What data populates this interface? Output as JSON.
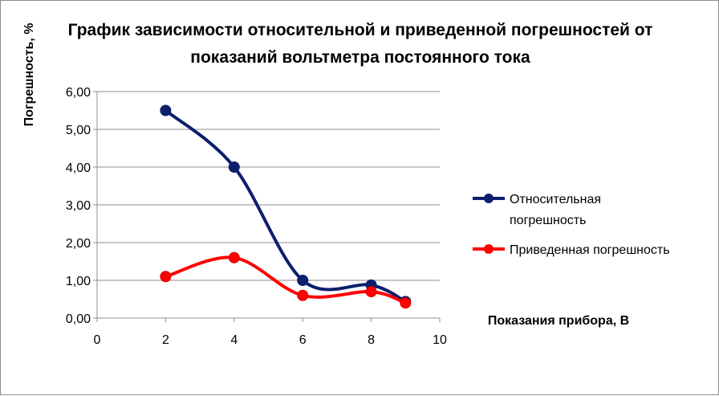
{
  "chart_data": {
    "type": "line",
    "title_line1": "График зависимости относительной и приведенной погрешностей от",
    "title_line2": "показаний вольтметра  постоянного тока",
    "xlabel": "Показания прибора, В",
    "ylabel": "Погрешность, %",
    "xlim": [
      0,
      10
    ],
    "ylim": [
      0,
      6
    ],
    "x_ticks": [
      "0",
      "2",
      "4",
      "6",
      "8",
      "10"
    ],
    "y_ticks": [
      "0,00",
      "1,00",
      "2,00",
      "3,00",
      "4,00",
      "5,00",
      "6,00"
    ],
    "grid": "horizontal",
    "smooth": true,
    "legend_position": "right",
    "series": [
      {
        "name": "Относительная погрешность",
        "legend_line1": "Относительная",
        "legend_line2": "погрешность",
        "color": "#0b1f6b",
        "x": [
          2,
          4,
          6,
          8,
          9
        ],
        "y": [
          5.5,
          4.0,
          1.0,
          0.875,
          0.44
        ]
      },
      {
        "name": "Приведенная погрешность",
        "color": "#ff0000",
        "x": [
          2,
          4,
          6,
          8,
          9
        ],
        "y": [
          1.1,
          1.6,
          0.6,
          0.7,
          0.4
        ]
      }
    ]
  }
}
